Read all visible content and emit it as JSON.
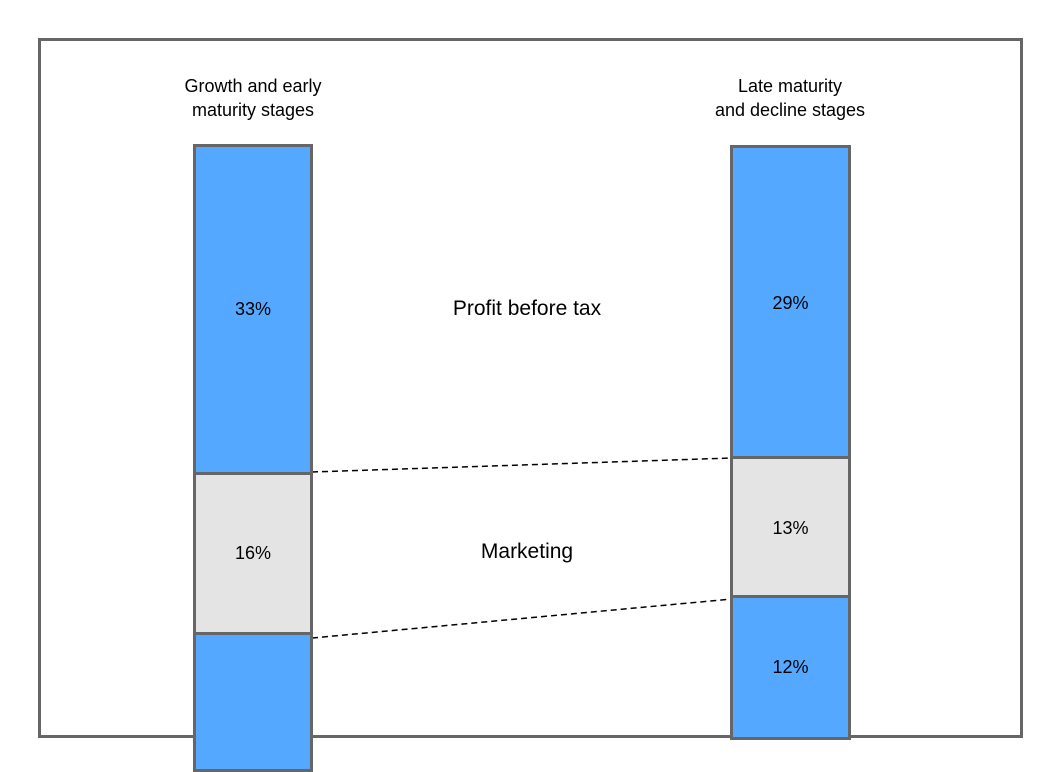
{
  "columns": [
    {
      "title_lines": [
        "Growth and early",
        "maturity stages"
      ]
    },
    {
      "title_lines": [
        "Late maturity",
        "and decline stages"
      ]
    }
  ],
  "categories": [
    "Profit before tax",
    "Marketing"
  ],
  "chart_data": {
    "type": "bar",
    "stacked": true,
    "categories": [
      "Growth and early maturity stages",
      "Late maturity and decline stages"
    ],
    "series": [
      {
        "name": "Profit before tax",
        "values": [
          33,
          29
        ],
        "labels": [
          "33%",
          "29%"
        ]
      },
      {
        "name": "Marketing",
        "values": [
          16,
          13
        ],
        "labels": [
          "16%",
          "13%"
        ]
      },
      {
        "values": [
          null,
          12
        ],
        "labels": [
          "",
          "12%"
        ]
      }
    ],
    "colors": {
      "profit": "#55a8ff",
      "marketing": "#e4e4e4",
      "border": "#666666"
    }
  }
}
